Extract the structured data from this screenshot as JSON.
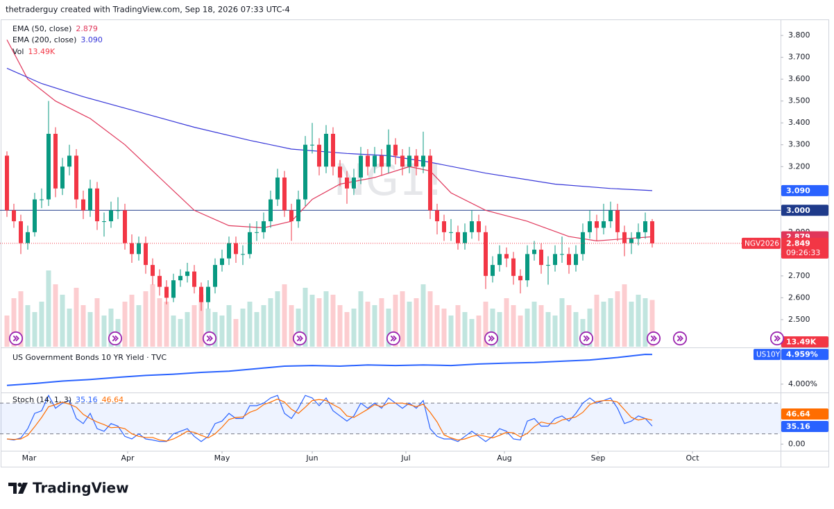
{
  "chart_data": {
    "type": "candlestick",
    "header": "thetraderguy created with TradingView.com, Sep 18, 2026 07:33 UTC-4",
    "watermark": "NG1!",
    "symbol_label": "NGV2026",
    "countdown": "09:26:33",
    "logo": "TradingView",
    "up_color": "#089981",
    "down_color": "#f23645",
    "xlim": [
      -1,
      111.5
    ],
    "xticks": [
      {
        "value": 3.2,
        "label": "Mar"
      },
      {
        "value": 17.4,
        "label": "Apr"
      },
      {
        "value": 31,
        "label": "May"
      },
      {
        "value": 44,
        "label": "Jun"
      },
      {
        "value": 57.5,
        "label": "Jul"
      },
      {
        "value": 71.7,
        "label": "Aug"
      },
      {
        "value": 85.2,
        "label": "Sep"
      },
      {
        "value": 98.8,
        "label": "Oct"
      }
    ],
    "ylim": [
      2.376,
      3.867
    ],
    "yticks": [
      {
        "value": 2.5,
        "label": "2.500"
      },
      {
        "value": 2.6,
        "label": "2.600"
      },
      {
        "value": 2.7,
        "label": "2.700"
      },
      {
        "value": 2.8,
        "label": "2.800"
      },
      {
        "value": 2.9,
        "label": "2.900"
      },
      {
        "value": 3.0,
        "label": "3.000"
      },
      {
        "value": 3.1,
        "label": "3.100"
      },
      {
        "value": 3.2,
        "label": "3.200"
      },
      {
        "value": 3.3,
        "label": "3.300"
      },
      {
        "value": 3.4,
        "label": "3.400"
      },
      {
        "value": 3.5,
        "label": "3.500"
      },
      {
        "value": 3.6,
        "label": "3.600"
      },
      {
        "value": 3.7,
        "label": "3.700"
      },
      {
        "value": 3.8,
        "label": "3.800"
      }
    ],
    "hline": {
      "value": 3,
      "label": "3.000",
      "color": "#1e3a8a"
    },
    "candles": [
      [
        3.25,
        3.27,
        2.97,
        3.0
      ],
      [
        3.0,
        3.03,
        2.92,
        2.95
      ],
      [
        2.95,
        2.98,
        2.8,
        2.85
      ],
      [
        2.85,
        2.93,
        2.82,
        2.9
      ],
      [
        2.9,
        3.08,
        2.88,
        3.05
      ],
      [
        3.05,
        3.1,
        3.01,
        3.05
      ],
      [
        3.05,
        3.5,
        3.02,
        3.35
      ],
      [
        3.35,
        3.38,
        3.06,
        3.1
      ],
      [
        3.1,
        3.24,
        3.07,
        3.2
      ],
      [
        3.2,
        3.3,
        3.16,
        3.25
      ],
      [
        3.25,
        3.28,
        3.01,
        3.05
      ],
      [
        3.05,
        3.09,
        2.96,
        3.0
      ],
      [
        3.0,
        3.14,
        2.97,
        3.1
      ],
      [
        3.1,
        3.13,
        2.91,
        2.95
      ],
      [
        2.95,
        2.99,
        2.88,
        2.95
      ],
      [
        2.95,
        3.04,
        2.92,
        3.0
      ],
      [
        3.0,
        3.06,
        2.96,
        3.0
      ],
      [
        3.0,
        3.03,
        2.82,
        2.85
      ],
      [
        2.85,
        2.89,
        2.76,
        2.8
      ],
      [
        2.8,
        2.88,
        2.77,
        2.85
      ],
      [
        2.85,
        2.88,
        2.71,
        2.75
      ],
      [
        2.75,
        2.78,
        2.66,
        2.7
      ],
      [
        2.7,
        2.73,
        2.61,
        2.65
      ],
      [
        2.65,
        2.68,
        2.57,
        2.6
      ],
      [
        2.6,
        2.71,
        2.58,
        2.68
      ],
      [
        2.68,
        2.73,
        2.65,
        2.7
      ],
      [
        2.7,
        2.76,
        2.67,
        2.72
      ],
      [
        2.72,
        2.75,
        2.62,
        2.65
      ],
      [
        2.65,
        2.67,
        2.54,
        2.58
      ],
      [
        2.58,
        2.68,
        2.55,
        2.65
      ],
      [
        2.65,
        2.78,
        2.62,
        2.75
      ],
      [
        2.75,
        2.82,
        2.72,
        2.78
      ],
      [
        2.78,
        2.88,
        2.75,
        2.85
      ],
      [
        2.85,
        2.88,
        2.76,
        2.8
      ],
      [
        2.8,
        2.84,
        2.75,
        2.8
      ],
      [
        2.8,
        2.94,
        2.78,
        2.9
      ],
      [
        2.9,
        2.95,
        2.86,
        2.9
      ],
      [
        2.9,
        2.99,
        2.87,
        2.95
      ],
      [
        2.95,
        3.09,
        2.92,
        3.05
      ],
      [
        3.05,
        3.19,
        3.02,
        3.15
      ],
      [
        3.15,
        3.18,
        2.97,
        3.0
      ],
      [
        3.0,
        3.03,
        2.86,
        2.95
      ],
      [
        2.95,
        3.09,
        2.92,
        3.05
      ],
      [
        3.05,
        3.34,
        3.02,
        3.3
      ],
      [
        3.3,
        3.4,
        3.26,
        3.3
      ],
      [
        3.3,
        3.33,
        3.16,
        3.2
      ],
      [
        3.2,
        3.39,
        3.17,
        3.35
      ],
      [
        3.35,
        3.38,
        3.16,
        3.2
      ],
      [
        3.2,
        3.23,
        3.11,
        3.15
      ],
      [
        3.15,
        3.18,
        3.03,
        3.1
      ],
      [
        3.1,
        3.19,
        3.07,
        3.15
      ],
      [
        3.15,
        3.29,
        3.12,
        3.25
      ],
      [
        3.25,
        3.28,
        3.16,
        3.2
      ],
      [
        3.2,
        3.29,
        3.17,
        3.25
      ],
      [
        3.25,
        3.28,
        3.16,
        3.2
      ],
      [
        3.2,
        3.37,
        3.17,
        3.3
      ],
      [
        3.3,
        3.33,
        3.21,
        3.25
      ],
      [
        3.25,
        3.28,
        3.16,
        3.2
      ],
      [
        3.2,
        3.29,
        3.17,
        3.25
      ],
      [
        3.25,
        3.28,
        3.16,
        3.2
      ],
      [
        3.2,
        3.36,
        3.17,
        3.25
      ],
      [
        3.25,
        3.28,
        2.96,
        3.0
      ],
      [
        3.0,
        3.03,
        2.89,
        2.95
      ],
      [
        2.95,
        2.98,
        2.86,
        2.9
      ],
      [
        2.9,
        2.96,
        2.86,
        2.9
      ],
      [
        2.9,
        2.93,
        2.82,
        2.85
      ],
      [
        2.85,
        2.94,
        2.82,
        2.9
      ],
      [
        2.9,
        3.0,
        2.87,
        2.95
      ],
      [
        2.95,
        2.98,
        2.86,
        2.9
      ],
      [
        2.9,
        2.93,
        2.64,
        2.7
      ],
      [
        2.7,
        2.79,
        2.67,
        2.75
      ],
      [
        2.75,
        2.84,
        2.72,
        2.8
      ],
      [
        2.8,
        2.83,
        2.74,
        2.78
      ],
      [
        2.78,
        2.81,
        2.66,
        2.7
      ],
      [
        2.7,
        2.73,
        2.62,
        2.68
      ],
      [
        2.68,
        2.84,
        2.65,
        2.8
      ],
      [
        2.8,
        2.86,
        2.77,
        2.82
      ],
      [
        2.82,
        2.85,
        2.71,
        2.75
      ],
      [
        2.75,
        2.79,
        2.66,
        2.75
      ],
      [
        2.75,
        2.84,
        2.72,
        2.8
      ],
      [
        2.8,
        2.88,
        2.76,
        2.8
      ],
      [
        2.8,
        2.83,
        2.71,
        2.75
      ],
      [
        2.75,
        2.84,
        2.72,
        2.8
      ],
      [
        2.8,
        2.94,
        2.77,
        2.9
      ],
      [
        2.9,
        3.0,
        2.87,
        2.95
      ],
      [
        2.95,
        2.98,
        2.86,
        2.92
      ],
      [
        2.92,
        3.03,
        2.89,
        2.95
      ],
      [
        2.95,
        3.04,
        2.92,
        3.0
      ],
      [
        3.0,
        3.03,
        2.86,
        2.9
      ],
      [
        2.9,
        2.93,
        2.79,
        2.85
      ],
      [
        2.85,
        2.9,
        2.8,
        2.87
      ],
      [
        2.87,
        2.94,
        2.84,
        2.9
      ],
      [
        2.9,
        2.99,
        2.87,
        2.95
      ],
      [
        2.95,
        2.96,
        2.83,
        2.849
      ]
    ],
    "series": [
      {
        "name": "EMA (50, close)",
        "color": "#e0365a",
        "last_label": "2.879",
        "x": [
          0,
          3,
          7,
          12,
          17,
          22,
          27,
          32,
          37,
          41,
          44,
          48,
          53,
          58,
          61,
          64,
          69,
          75,
          81,
          85,
          89,
          93
        ],
        "values": [
          3.78,
          3.6,
          3.5,
          3.42,
          3.3,
          3.15,
          3.0,
          2.93,
          2.92,
          2.95,
          3.05,
          3.12,
          3.15,
          3.2,
          3.18,
          3.08,
          3.0,
          2.95,
          2.88,
          2.86,
          2.87,
          2.879
        ]
      },
      {
        "name": "EMA (200, close)",
        "color": "#3535d8",
        "last_label": "3.090",
        "x": [
          0,
          5,
          11,
          19,
          27,
          35,
          41,
          49,
          55,
          61,
          69,
          79,
          87,
          93
        ],
        "values": [
          3.65,
          3.58,
          3.52,
          3.45,
          3.38,
          3.32,
          3.28,
          3.26,
          3.25,
          3.22,
          3.17,
          3.12,
          3.1,
          3.09
        ]
      }
    ],
    "volume": {
      "name": "Vol",
      "last_label": "13.49K",
      "values": [
        9000,
        14000,
        16000,
        12000,
        10000,
        13000,
        22000,
        18000,
        15000,
        11000,
        17000,
        12000,
        10000,
        14000,
        9000,
        11000,
        8000,
        13000,
        15000,
        12000,
        16000,
        18000,
        14000,
        13000,
        9000,
        8000,
        10000,
        12000,
        15000,
        11000,
        10000,
        9000,
        12000,
        8000,
        11000,
        13000,
        10000,
        12000,
        14000,
        16000,
        18000,
        12000,
        11000,
        17000,
        15000,
        14000,
        16000,
        15000,
        12000,
        10000,
        11000,
        16000,
        13000,
        12000,
        14000,
        11000,
        15000,
        16000,
        13000,
        14000,
        18000,
        16000,
        12000,
        11000,
        9000,
        12000,
        10000,
        8000,
        9000,
        13000,
        11000,
        10000,
        14000,
        12000,
        9000,
        11000,
        13000,
        12000,
        10000,
        9000,
        14000,
        12000,
        10000,
        8000,
        11000,
        15000,
        13000,
        14000,
        16000,
        18000,
        13000,
        15000,
        14000,
        13490
      ]
    },
    "panes": [
      {
        "type": "line",
        "title": "US Government Bonds 10 YR Yield · TVC",
        "label": "US10Y",
        "color": "#2962ff",
        "last_label": "4.959%",
        "ylim": [
          3.73,
          5.14
        ],
        "yticks": [
          {
            "value": 4,
            "label": "4.000%"
          }
        ],
        "x": [
          0,
          4,
          8,
          12,
          16,
          20,
          24,
          28,
          32,
          36,
          40,
          44,
          48,
          52,
          56,
          60,
          64,
          68,
          72,
          76,
          80,
          84,
          88,
          92,
          93
        ],
        "values": [
          3.96,
          4.02,
          4.1,
          4.15,
          4.22,
          4.28,
          4.32,
          4.38,
          4.42,
          4.5,
          4.58,
          4.6,
          4.58,
          4.62,
          4.6,
          4.62,
          4.6,
          4.65,
          4.68,
          4.7,
          4.74,
          4.78,
          4.86,
          4.96,
          4.959
        ]
      },
      {
        "type": "stoch",
        "title": "Stoch (14, 1, 3)",
        "ylim": [
          -13,
          98
        ],
        "yticks": [
          {
            "value": 0,
            "label": "0.00"
          }
        ],
        "bands": [
          20,
          80
        ],
        "band_color": "#2962ff",
        "series": [
          {
            "color": "#2962ff",
            "values": [
              10,
              8,
              12,
              30,
              60,
              65,
              95,
              70,
              80,
              85,
              50,
              40,
              60,
              30,
              25,
              40,
              35,
              15,
              10,
              20,
              10,
              8,
              5,
              5,
              20,
              25,
              30,
              15,
              5,
              15,
              40,
              45,
              60,
              50,
              50,
              75,
              75,
              80,
              90,
              95,
              60,
              50,
              70,
              95,
              90,
              75,
              90,
              65,
              55,
              45,
              55,
              80,
              70,
              80,
              70,
              90,
              80,
              70,
              80,
              70,
              85,
              30,
              15,
              10,
              10,
              5,
              15,
              25,
              15,
              5,
              15,
              30,
              25,
              10,
              8,
              45,
              50,
              35,
              35,
              50,
              55,
              45,
              60,
              80,
              90,
              80,
              85,
              90,
              70,
              40,
              45,
              55,
              50,
              35.16
            ]
          },
          {
            "color": "#ff6d00",
            "values": [
              10,
              9,
              10,
              17,
              34,
              52,
              73,
              77,
              82,
              78,
              72,
              58,
              50,
              43,
              38,
              32,
              33,
              30,
              20,
              15,
              13,
              13,
              8,
              6,
              10,
              17,
              25,
              23,
              17,
              12,
              20,
              33,
              48,
              52,
              53,
              62,
              67,
              77,
              82,
              88,
              82,
              68,
              60,
              72,
              85,
              87,
              85,
              77,
              70,
              55,
              52,
              60,
              68,
              77,
              73,
              80,
              80,
              80,
              77,
              73,
              78,
              62,
              43,
              18,
              12,
              8,
              10,
              15,
              18,
              15,
              12,
              17,
              23,
              22,
              14,
              21,
              34,
              43,
              40,
              40,
              47,
              50,
              53,
              62,
              77,
              83,
              85,
              85,
              82,
              67,
              52,
              47,
              50,
              46.64
            ]
          }
        ]
      }
    ]
  }
}
